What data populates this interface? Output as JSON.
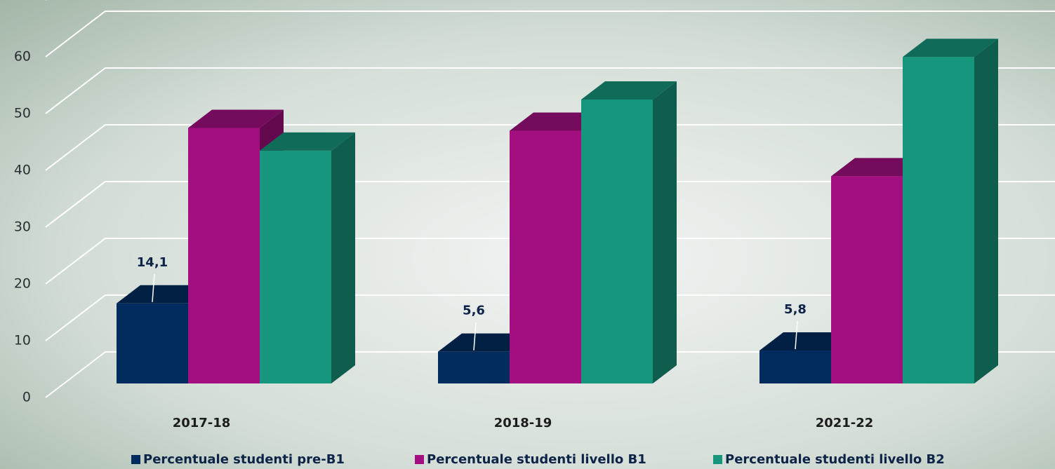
{
  "chart_data": {
    "type": "bar3d",
    "categories": [
      "2017-18",
      "2018-19",
      "2021-22"
    ],
    "series": [
      {
        "name": "Percentuale studenti pre-B1",
        "color": "#032c5e",
        "values": [
          14.1,
          5.6,
          5.8
        ],
        "value_labels": [
          "14,1",
          "5,6",
          "5,8"
        ]
      },
      {
        "name": "Percentuale studenti livello B1",
        "color": "#a30f80",
        "values": [
          45,
          44.5,
          36.5
        ]
      },
      {
        "name": "Percentuale studenti livello B2",
        "color": "#16967c",
        "values": [
          41,
          50,
          57.5
        ]
      }
    ],
    "ylim": [
      0,
      70
    ],
    "yticks": [
      0,
      10,
      20,
      30,
      40,
      50,
      60
    ],
    "grid": true,
    "legend": "bottom"
  }
}
